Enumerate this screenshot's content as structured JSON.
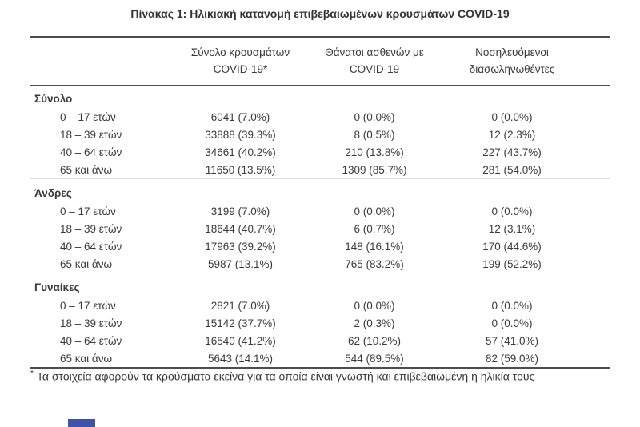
{
  "title": "Πίνακας 1: Ηλικιακή κατανομή επιβεβαιωμένων κρουσμάτων COVID-19",
  "table": {
    "headers": [
      {
        "line1": "Σύνολο κρουσμάτων",
        "line2": "COVID-19*"
      },
      {
        "line1": "Θάνατοι ασθενών με",
        "line2": "COVID-19"
      },
      {
        "line1": "Νοσηλευόμενοι",
        "line2": "διασωληνωθέντες"
      }
    ],
    "sections": [
      {
        "label": "Σύνολο",
        "rows": [
          {
            "age": "0 – 17 ετών",
            "cases": "6041 (7.0%)",
            "deaths": "0 (0.0%)",
            "intubated": "0 (0.0%)"
          },
          {
            "age": "18 – 39 ετών",
            "cases": "33888 (39.3%)",
            "deaths": "8 (0.5%)",
            "intubated": "12 (2.3%)"
          },
          {
            "age": "40 – 64 ετών",
            "cases": "34661 (40.2%)",
            "deaths": "210 (13.8%)",
            "intubated": "227 (43.7%)"
          },
          {
            "age": "65 και άνω",
            "cases": "11650 (13.5%)",
            "deaths": "1309 (85.7%)",
            "intubated": "281 (54.0%)"
          }
        ]
      },
      {
        "label": "Άνδρες",
        "rows": [
          {
            "age": "0 – 17 ετών",
            "cases": "3199 (7.0%)",
            "deaths": "0 (0.0%)",
            "intubated": "0 (0.0%)"
          },
          {
            "age": "18 – 39 ετών",
            "cases": "18644 (40.7%)",
            "deaths": "6 (0.7%)",
            "intubated": "12 (3.1%)"
          },
          {
            "age": "40 – 64 ετών",
            "cases": "17963 (39.2%)",
            "deaths": "148 (16.1%)",
            "intubated": "170 (44.6%)"
          },
          {
            "age": "65 και άνω",
            "cases": "5987 (13.1%)",
            "deaths": "765 (83.2%)",
            "intubated": "199 (52.2%)"
          }
        ]
      },
      {
        "label": "Γυναίκες",
        "rows": [
          {
            "age": "0 – 17 ετών",
            "cases": "2821 (7.0%)",
            "deaths": "0 (0.0%)",
            "intubated": "0 (0.0%)"
          },
          {
            "age": "18 – 39 ετών",
            "cases": "15142 (37.7%)",
            "deaths": "2 (0.3%)",
            "intubated": "0 (0.0%)"
          },
          {
            "age": "40 – 64 ετών",
            "cases": "16540 (41.2%)",
            "deaths": "62 (10.2%)",
            "intubated": "57 (41.0%)"
          },
          {
            "age": "65 και άνω",
            "cases": "5643 (14.1%)",
            "deaths": "544 (89.5%)",
            "intubated": "82 (59.0%)"
          }
        ]
      }
    ]
  },
  "footnote": {
    "marker": "*",
    "text": "Τα στοιχεία αφορούν τα κρούσματα εκείνα για τα οποία είναι γνωστή και επιβεβαιωμένη η ηλικία τους"
  },
  "colors": {
    "text": "#3a3a3a",
    "rule_dark": "#4d4d4d",
    "rule_light": "#dcdcdc",
    "footer_accent_blue": "#4053a8"
  }
}
